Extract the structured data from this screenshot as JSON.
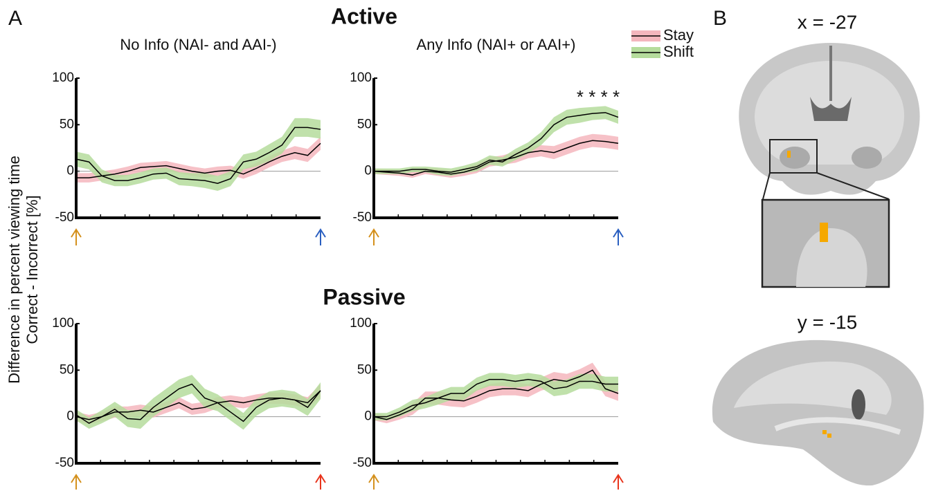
{
  "panel_labels": [
    "A",
    "B"
  ],
  "section_titles": [
    "Active",
    "Passive"
  ],
  "y_label": [
    "Difference in percent viewing time",
    "Correct - Incorrect [%]"
  ],
  "legend": [
    "Stay",
    "Shift"
  ],
  "chart_data": [
    {
      "type": "line",
      "title": "No Info (NAI- and AAI-)",
      "ylim": [
        -50,
        100
      ],
      "yticks": [
        -50,
        0,
        50,
        100
      ],
      "zero_line": true,
      "line_color": "#000000",
      "start_arrow_color": "#d4901c",
      "end_arrow_color": "#2a5fc0",
      "series": [
        {
          "color": "#f4b6bd",
          "values": [
            -7,
            -7,
            -5,
            -3,
            0,
            4,
            5,
            6,
            3,
            0,
            -2,
            0,
            1,
            -3,
            3,
            10,
            16,
            20,
            17,
            30
          ],
          "error": [
            5,
            5,
            5,
            5,
            5,
            5,
            5,
            5,
            5,
            5,
            5,
            5,
            5,
            5,
            6,
            6,
            6,
            7,
            7,
            7
          ]
        },
        {
          "color": "#b5dc9c",
          "values": [
            13,
            10,
            -5,
            -10,
            -10,
            -7,
            -3,
            -2,
            -8,
            -9,
            -10,
            -13,
            -8,
            10,
            13,
            20,
            28,
            47,
            47,
            45
          ],
          "error": [
            8,
            8,
            7,
            6,
            6,
            6,
            6,
            6,
            7,
            7,
            8,
            8,
            8,
            8,
            8,
            9,
            9,
            10,
            10,
            10
          ]
        }
      ]
    },
    {
      "type": "line",
      "title": "Any Info (NAI+ or AAI+)",
      "annotation": "* * * *",
      "ylim": [
        -50,
        100
      ],
      "yticks": [
        -50,
        0,
        50,
        100
      ],
      "zero_line": true,
      "line_color": "#000000",
      "start_arrow_color": "#d4901c",
      "end_arrow_color": "#2a5fc0",
      "series": [
        {
          "color": "#f4b6bd",
          "values": [
            0,
            -1,
            -2,
            -4,
            0,
            -1,
            -3,
            -1,
            3,
            10,
            12,
            15,
            20,
            22,
            20,
            25,
            30,
            33,
            32,
            30
          ],
          "error": [
            3,
            3,
            3,
            3,
            3,
            4,
            4,
            4,
            5,
            5,
            5,
            6,
            6,
            6,
            7,
            7,
            7,
            7,
            7,
            7
          ]
        },
        {
          "color": "#b5dc9c",
          "values": [
            0,
            0,
            0,
            2,
            2,
            0,
            -1,
            2,
            5,
            12,
            10,
            18,
            25,
            35,
            50,
            58,
            60,
            62,
            63,
            58
          ],
          "error": [
            3,
            3,
            3,
            3,
            3,
            4,
            4,
            4,
            5,
            5,
            5,
            6,
            6,
            7,
            8,
            8,
            8,
            7,
            7,
            7
          ]
        }
      ]
    },
    {
      "type": "line",
      "ylim": [
        -50,
        100
      ],
      "yticks": [
        -50,
        0,
        50,
        100
      ],
      "zero_line": true,
      "line_color": "#000000",
      "start_arrow_color": "#d4901c",
      "end_arrow_color": "#e8341c",
      "series": [
        {
          "color": "#f4b6bd",
          "values": [
            0,
            -3,
            0,
            5,
            5,
            7,
            5,
            10,
            15,
            8,
            10,
            15,
            17,
            15,
            18,
            20,
            20,
            18,
            15,
            28
          ],
          "error": [
            5,
            5,
            5,
            6,
            6,
            6,
            6,
            6,
            6,
            6,
            6,
            6,
            6,
            6,
            6,
            6,
            6,
            6,
            6,
            7
          ]
        },
        {
          "color": "#b5dc9c",
          "values": [
            2,
            -7,
            0,
            8,
            -2,
            -3,
            10,
            20,
            30,
            35,
            20,
            15,
            5,
            -5,
            10,
            18,
            20,
            18,
            10,
            28
          ],
          "error": [
            6,
            6,
            7,
            8,
            9,
            10,
            10,
            10,
            10,
            10,
            10,
            9,
            9,
            9,
            9,
            9,
            9,
            9,
            9,
            9
          ]
        }
      ]
    },
    {
      "type": "line",
      "ylim": [
        -50,
        100
      ],
      "yticks": [
        -50,
        0,
        50,
        100
      ],
      "zero_line": true,
      "line_color": "#000000",
      "start_arrow_color": "#d4901c",
      "end_arrow_color": "#e8341c",
      "series": [
        {
          "color": "#f4b6bd",
          "values": [
            0,
            -3,
            2,
            8,
            20,
            20,
            18,
            17,
            22,
            28,
            30,
            30,
            28,
            35,
            40,
            38,
            43,
            50,
            30,
            25
          ],
          "error": [
            4,
            4,
            5,
            6,
            7,
            7,
            7,
            7,
            7,
            7,
            7,
            7,
            7,
            7,
            8,
            8,
            8,
            8,
            8,
            8
          ]
        },
        {
          "color": "#b5dc9c",
          "values": [
            0,
            0,
            5,
            12,
            15,
            20,
            25,
            25,
            35,
            40,
            40,
            38,
            40,
            38,
            30,
            32,
            38,
            38,
            35,
            35
          ],
          "error": [
            4,
            4,
            5,
            6,
            6,
            7,
            7,
            7,
            7,
            7,
            7,
            7,
            7,
            7,
            8,
            8,
            8,
            8,
            8,
            8
          ]
        }
      ]
    }
  ],
  "brain": {
    "slices": [
      "x = -27",
      "y = -15"
    ]
  }
}
